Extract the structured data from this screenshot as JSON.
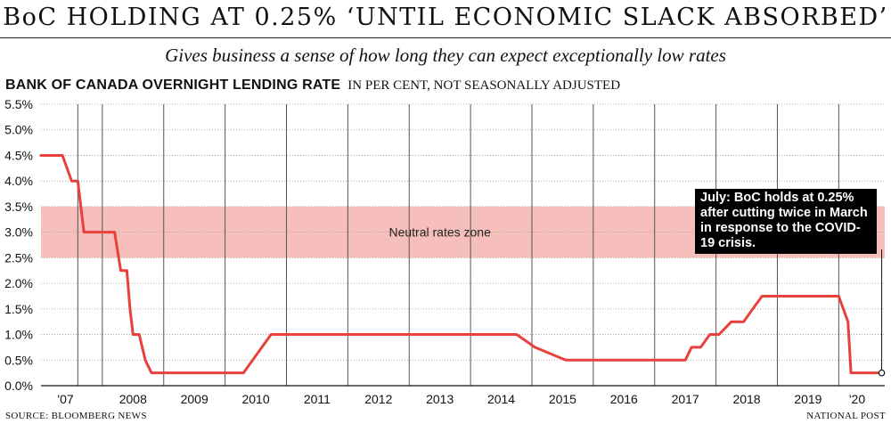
{
  "header": {
    "title": "BoC HOLDING AT 0.25% ‘UNTIL ECONOMIC SLACK ABSORBED’",
    "subtitle": "Gives business a sense of how long they can expect exceptionally low rates",
    "section_title": "BANK OF CANADA OVERNIGHT LENDING RATE",
    "section_unit": "IN PER CENT, NOT SEASONALLY ADJUSTED"
  },
  "footer": {
    "source": "SOURCE: BLOOMBERG NEWS",
    "credit": "NATIONAL POST"
  },
  "colors": {
    "line": "#e8413c",
    "zone": "#f7bfbb",
    "grid": "#555555",
    "text": "#111111"
  },
  "chart_data": {
    "type": "line",
    "ylim": [
      0,
      5.5
    ],
    "yticks": [
      0,
      0.5,
      1.0,
      1.5,
      2.0,
      2.5,
      3.0,
      3.5,
      4.0,
      4.5,
      5.0,
      5.5
    ],
    "ytick_labels": [
      "0.0%",
      "0.5%",
      "1.0%",
      "1.5%",
      "2.0%",
      "2.5%",
      "3.0%",
      "3.5%",
      "4.0%",
      "4.5%",
      "5.0%",
      "5.5%"
    ],
    "x_range": [
      2007.0,
      2020.75
    ],
    "year_labels": [
      {
        "label": "'07",
        "x": 2007.4
      },
      {
        "label": "2008",
        "x": 2008.5
      },
      {
        "label": "2009",
        "x": 2009.5
      },
      {
        "label": "2010",
        "x": 2010.5
      },
      {
        "label": "2011",
        "x": 2011.5
      },
      {
        "label": "2012",
        "x": 2012.5
      },
      {
        "label": "2013",
        "x": 2013.5
      },
      {
        "label": "2014",
        "x": 2014.5
      },
      {
        "label": "2015",
        "x": 2015.5
      },
      {
        "label": "2016",
        "x": 2016.5
      },
      {
        "label": "2017",
        "x": 2017.5
      },
      {
        "label": "2018",
        "x": 2018.5
      },
      {
        "label": "2019",
        "x": 2019.5
      },
      {
        "label": "'20",
        "x": 2020.3
      }
    ],
    "year_gridlines": [
      2007.6,
      2008,
      2009,
      2010,
      2011,
      2012,
      2013,
      2014,
      2015,
      2016,
      2017,
      2018,
      2019,
      2020
    ],
    "zone": {
      "from": 2.5,
      "to": 3.5,
      "label": "Neutral rates zone"
    },
    "series": [
      {
        "x": [
          2007.0,
          2007.35,
          2007.5,
          2007.6,
          2007.7,
          2008.05,
          2008.2,
          2008.3,
          2008.35,
          2008.4,
          2008.45,
          2008.5,
          2008.6,
          2008.7,
          2008.8,
          2008.9,
          2009.0,
          2009.1,
          2009.2,
          2009.3,
          2010.3,
          2010.45,
          2010.6,
          2010.75,
          2014.75,
          2015.05,
          2015.55,
          2017.5,
          2017.6,
          2017.75,
          2017.9,
          2018.05,
          2018.25,
          2018.45,
          2018.6,
          2018.75,
          2020.0,
          2020.15,
          2020.2,
          2020.7
        ],
        "y": [
          4.5,
          4.5,
          4.0,
          4.0,
          3.0,
          3.0,
          3.0,
          2.25,
          2.25,
          2.25,
          1.5,
          1.0,
          1.0,
          0.5,
          0.25,
          0.25,
          0.25,
          0.25,
          0.25,
          0.25,
          0.25,
          0.5,
          0.75,
          1.0,
          1.0,
          0.75,
          0.5,
          0.5,
          0.75,
          0.75,
          1.0,
          1.0,
          1.25,
          1.25,
          1.5,
          1.75,
          1.75,
          1.25,
          0.25,
          0.25
        ]
      }
    ],
    "annotation": {
      "text": "July: BoC holds at 0.25% after cutting twice in March in response to the COVID-19 crisis.",
      "x": 2020.7,
      "y": 0.25
    }
  }
}
